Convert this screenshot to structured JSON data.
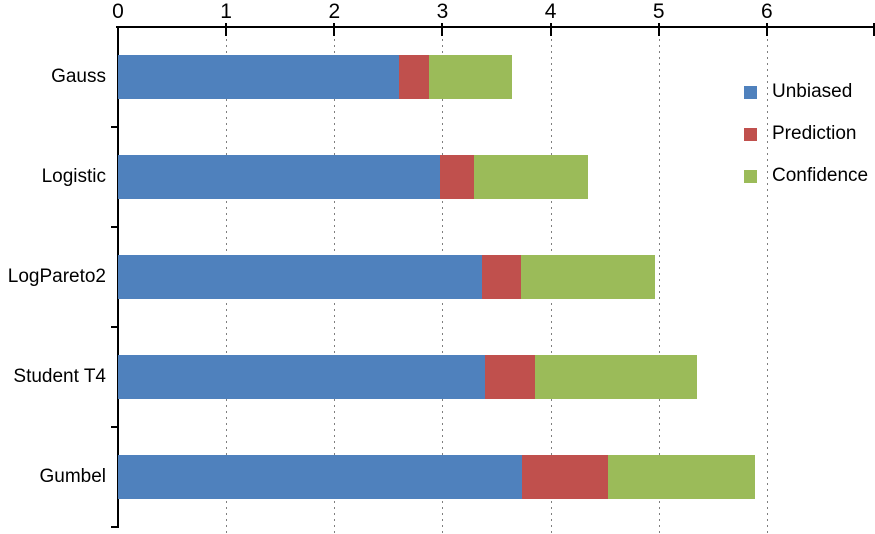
{
  "chart_data": {
    "type": "bar",
    "orientation": "horizontal",
    "stacked": true,
    "title": "",
    "xlabel": "",
    "ylabel": "",
    "categories": [
      "Gauss",
      "Logistic",
      "LogPareto2",
      "Student T4",
      "Gumbel"
    ],
    "series": [
      {
        "name": "Unbiased",
        "color": "#4F81BD",
        "values": [
          2.6,
          2.98,
          3.37,
          3.39,
          3.74
        ]
      },
      {
        "name": "Prediction",
        "color": "#C0504D",
        "values": [
          0.28,
          0.31,
          0.36,
          0.47,
          0.79
        ]
      },
      {
        "name": "Confidence",
        "color": "#9BBB59",
        "values": [
          0.76,
          1.06,
          1.24,
          1.49,
          1.36
        ]
      }
    ],
    "stack_totals": [
      3.64,
      4.35,
      4.97,
      5.35,
      5.89
    ],
    "xlim": [
      0,
      7
    ],
    "xticks": [
      "0",
      "1",
      "2",
      "3",
      "4",
      "5",
      "6"
    ],
    "grid": "vertical-dashed",
    "legend_position": "inside-right",
    "axis_color": "#000000",
    "gridline_color": "#7F7F7F",
    "background": "#FFFFFF"
  }
}
